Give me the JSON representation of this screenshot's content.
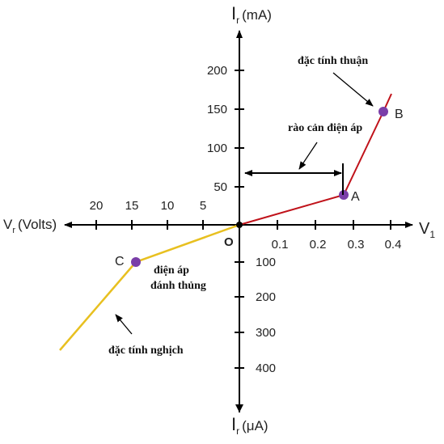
{
  "axes": {
    "y_top": {
      "symbol": "I",
      "subscript": "r",
      "unit": "(mA)"
    },
    "y_bottom": {
      "symbol": "I",
      "subscript": "r",
      "unit": "(μA)"
    },
    "x_left": {
      "symbol": "V",
      "subscript": "r",
      "unit": "(Volts)"
    },
    "x_right": {
      "symbol": "V",
      "subscript": "1"
    },
    "origin": "O",
    "y_top_ticks": [
      "50",
      "100",
      "150",
      "200"
    ],
    "y_bottom_ticks": [
      "100",
      "200",
      "300",
      "400"
    ],
    "x_right_ticks": [
      "0.1",
      "0.2",
      "0.3",
      "0.4"
    ],
    "x_left_ticks": [
      "5",
      "10",
      "15",
      "20"
    ]
  },
  "points": {
    "A": "A",
    "B": "B",
    "C": "C"
  },
  "annotations": {
    "forward": "đặc tính thuận",
    "barrier": "rào cản điện áp",
    "breakdown": [
      "điện áp",
      "đánh thủng"
    ],
    "reverse": "đặc tính nghịch"
  }
}
